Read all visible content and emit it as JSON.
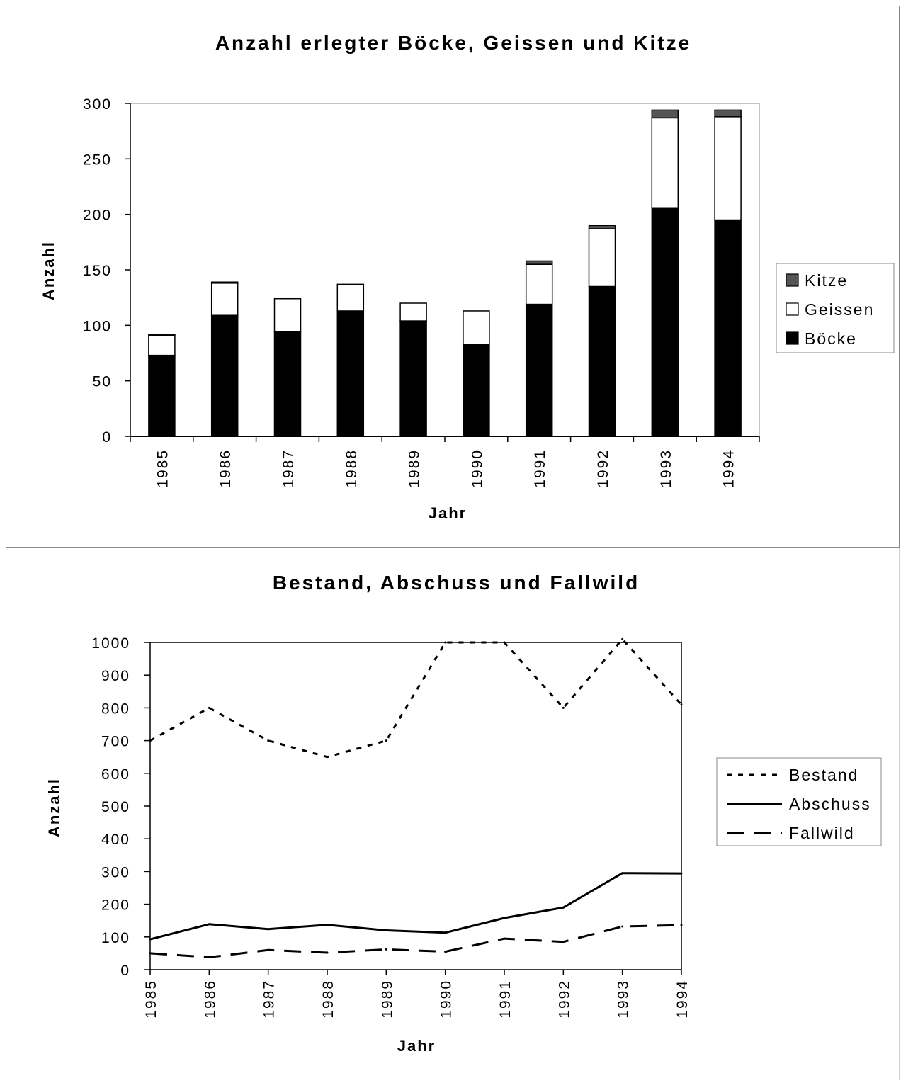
{
  "chart_data": [
    {
      "type": "bar",
      "stacked": true,
      "title": "Anzahl erlegter Böcke, Geissen und Kitze",
      "xlabel": "Jahr",
      "ylabel": "Anzahl",
      "ylim": [
        0,
        300
      ],
      "yticks": [
        "0",
        "50",
        "100",
        "150",
        "200",
        "250",
        "300"
      ],
      "categories": [
        "1985",
        "1986",
        "1987",
        "1988",
        "1989",
        "1990",
        "1991",
        "1992",
        "1993",
        "1994"
      ],
      "series": [
        {
          "name": "Böcke",
          "color": "#000000",
          "values": [
            73,
            109,
            94,
            113,
            104,
            83,
            119,
            135,
            206,
            195
          ]
        },
        {
          "name": "Geissen",
          "color": "#ffffff",
          "values": [
            18,
            29,
            30,
            24,
            16,
            30,
            36,
            52,
            81,
            93
          ]
        },
        {
          "name": "Kitze",
          "color": "#555555",
          "values": [
            1,
            1,
            0,
            0,
            0,
            0,
            3,
            3,
            7,
            6
          ]
        }
      ],
      "legend_order": [
        "Kitze",
        "Geissen",
        "Böcke"
      ],
      "legend_position": "right",
      "grid": false
    },
    {
      "type": "line",
      "title": "Bestand, Abschuss und Fallwild",
      "xlabel": "Jahr",
      "ylabel": "Anzahl",
      "ylim": [
        0,
        1000
      ],
      "yticks": [
        "0",
        "100",
        "200",
        "300",
        "400",
        "500",
        "600",
        "700",
        "800",
        "900",
        "1000"
      ],
      "x": [
        "1985",
        "1986",
        "1987",
        "1988",
        "1989",
        "1990",
        "1991",
        "1992",
        "1993",
        "1994"
      ],
      "series": [
        {
          "name": "Bestand",
          "style": "dotted",
          "values": [
            700,
            800,
            700,
            650,
            700,
            1000,
            1000,
            800,
            1010,
            810
          ]
        },
        {
          "name": "Abschuss",
          "style": "solid",
          "values": [
            93,
            139,
            124,
            137,
            120,
            113,
            158,
            190,
            295,
            294
          ]
        },
        {
          "name": "Fallwild",
          "style": "dashed",
          "values": [
            50,
            38,
            60,
            52,
            62,
            55,
            95,
            85,
            132,
            136
          ]
        }
      ],
      "legend_position": "right",
      "grid": false
    }
  ]
}
